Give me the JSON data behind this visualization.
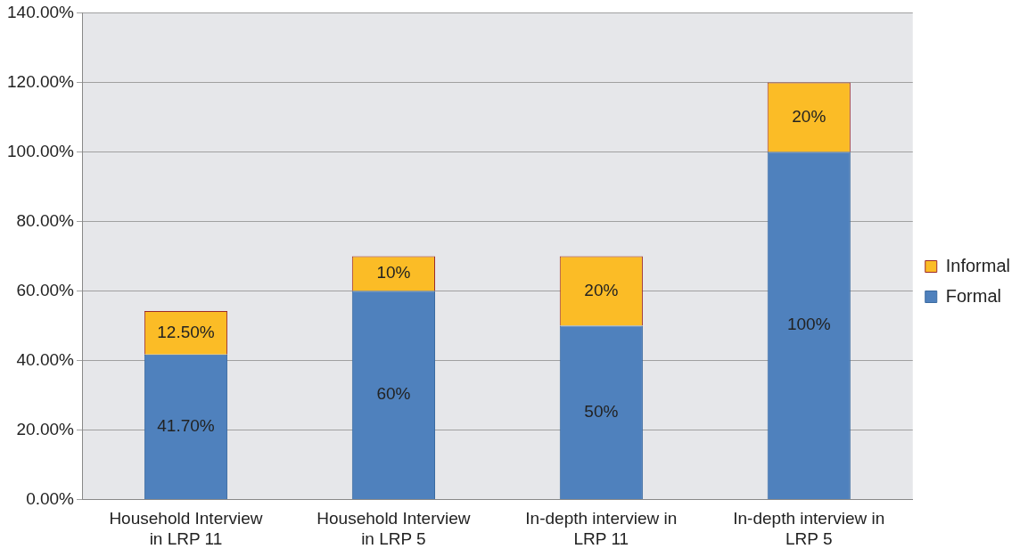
{
  "chart_data": {
    "type": "bar",
    "stacked": true,
    "categories": [
      "Household Interview in LRP 11",
      "Household Interview in LRP 5",
      "In-depth interview in LRP 11",
      "In-depth interview in LRP 5"
    ],
    "series": [
      {
        "name": "Formal",
        "color": "#4f81bd",
        "values": [
          41.7,
          60,
          50,
          100
        ],
        "value_labels": [
          "41.70%",
          "60%",
          "50%",
          "100%"
        ]
      },
      {
        "name": "Informal",
        "color": "#fbbc26",
        "values": [
          12.5,
          10,
          20,
          20
        ],
        "value_labels": [
          "12.50%",
          "10%",
          "20%",
          "20%"
        ]
      }
    ],
    "ylim": [
      0,
      140
    ],
    "yticks": [
      {
        "value": 0,
        "label": "0.00%"
      },
      {
        "value": 20,
        "label": "20.00%"
      },
      {
        "value": 40,
        "label": "40.00%"
      },
      {
        "value": 60,
        "label": "60.00%"
      },
      {
        "value": 80,
        "label": "80.00%"
      },
      {
        "value": 100,
        "label": "100.00%"
      },
      {
        "value": 120,
        "label": "120.00%"
      },
      {
        "value": 140,
        "label": "140.00%"
      }
    ],
    "grid": "y",
    "legend": "right"
  }
}
